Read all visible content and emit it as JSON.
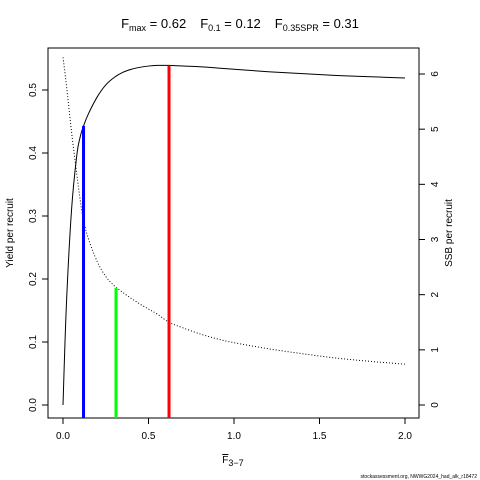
{
  "chart_data": {
    "type": "line",
    "title": {
      "fmax_label": "F",
      "fmax_sub": "max",
      "fmax_value": " = 0.62",
      "f01_label": "F",
      "f01_sub": "0.1",
      "f01_value": " = 0.12",
      "f35_label": "F",
      "f35_sub": "0.35SPR",
      "f35_value": " = 0.31"
    },
    "xlabel": "F",
    "xlabel_sub": "3−7",
    "ylabel_left": "Yield per recruit",
    "ylabel_right": "SSB per recruit",
    "xlim": [
      0,
      2
    ],
    "ylim_left": [
      0,
      0.55
    ],
    "ylim_right": [
      0,
      6.4
    ],
    "x_ticks": [
      0,
      0.5,
      1,
      1.5,
      2
    ],
    "x_tick_labels": [
      "0.0",
      "0.5",
      "1.0",
      "1.5",
      "2.0"
    ],
    "y_left_ticks": [
      0,
      0.1,
      0.2,
      0.3,
      0.4,
      0.5
    ],
    "y_left_tick_labels": [
      "0.0",
      "0.1",
      "0.2",
      "0.3",
      "0.4",
      "0.5"
    ],
    "y_right_ticks": [
      0,
      1,
      2,
      3,
      4,
      5,
      6
    ],
    "y_right_tick_labels": [
      "0",
      "1",
      "2",
      "3",
      "4",
      "5",
      "6"
    ],
    "series": [
      {
        "axis": "left",
        "style": "solid",
        "x": [
          0,
          0.02,
          0.05,
          0.08,
          0.1,
          0.12,
          0.15,
          0.2,
          0.25,
          0.3,
          0.35,
          0.4,
          0.45,
          0.5,
          0.55,
          0.62,
          0.7,
          0.8,
          0.9,
          1.0,
          1.2,
          1.4,
          1.6,
          1.8,
          2.0
        ],
        "y": [
          0,
          0.16,
          0.31,
          0.395,
          0.425,
          0.443,
          0.463,
          0.489,
          0.508,
          0.52,
          0.528,
          0.533,
          0.536,
          0.538,
          0.539,
          0.539,
          0.538,
          0.537,
          0.535,
          0.533,
          0.529,
          0.526,
          0.523,
          0.521,
          0.519
        ]
      },
      {
        "axis": "right",
        "style": "dotted",
        "x": [
          0,
          0.02,
          0.05,
          0.08,
          0.1,
          0.12,
          0.15,
          0.2,
          0.25,
          0.3,
          0.35,
          0.4,
          0.45,
          0.5,
          0.55,
          0.62,
          0.7,
          0.8,
          0.9,
          1.0,
          1.2,
          1.4,
          1.6,
          1.8,
          2.0
        ],
        "y": [
          6.3,
          5.8,
          4.95,
          4.2,
          3.73,
          3.35,
          3.0,
          2.6,
          2.33,
          2.16,
          2.04,
          1.93,
          1.83,
          1.74,
          1.65,
          1.5,
          1.4,
          1.29,
          1.2,
          1.13,
          1.02,
          0.93,
          0.85,
          0.79,
          0.74
        ]
      }
    ],
    "reference_lines": [
      {
        "label": "F0.1",
        "x": 0.12,
        "y_top": 0.443,
        "color": "#0000ff"
      },
      {
        "label": "F0.35SPR",
        "x": 0.31,
        "y_top": 0.186,
        "color": "#00ff00"
      },
      {
        "label": "Fmax",
        "x": 0.62,
        "y_top": 0.539,
        "color": "#ff0000"
      }
    ]
  },
  "credit": "stockassessment.org, NWWG2024_had_alk_r18472"
}
